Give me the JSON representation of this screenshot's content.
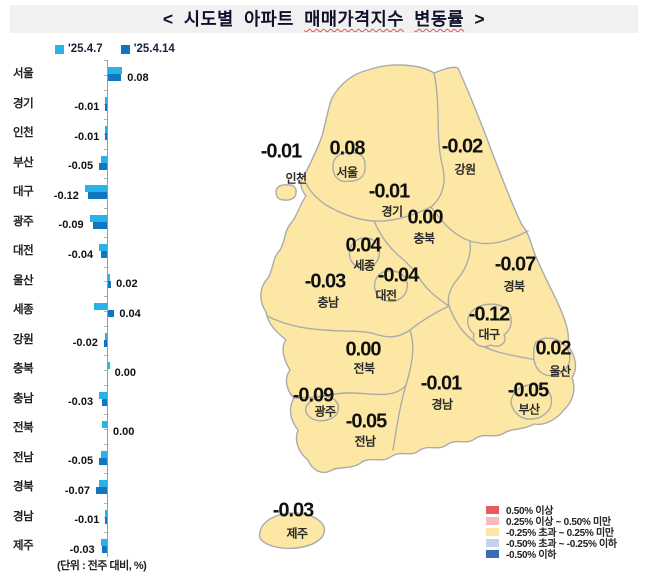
{
  "title": {
    "part1": "< 시도별 아파트 ",
    "word1": "매매가격지수",
    "sep": " ",
    "word2": "변동률",
    "part2": " >"
  },
  "chart_data": {
    "type": "bar",
    "orientation": "horizontal",
    "unit_note": "(단위 : 전주 대비, %)",
    "categories": [
      "서울",
      "경기",
      "인천",
      "부산",
      "대구",
      "광주",
      "대전",
      "울산",
      "세종",
      "강원",
      "충북",
      "충남",
      "전북",
      "전남",
      "경북",
      "경남",
      "제주"
    ],
    "series": [
      {
        "name": "'25.4.7",
        "color": "#29b2e8",
        "values": [
          0.09,
          -0.01,
          -0.01,
          -0.04,
          -0.14,
          -0.11,
          -0.05,
          0.01,
          -0.08,
          -0.01,
          0.01,
          -0.05,
          -0.03,
          -0.04,
          -0.05,
          -0.01,
          -0.04
        ]
      },
      {
        "name": "'25.4.14",
        "color": "#0f76bf",
        "values": [
          0.08,
          -0.01,
          -0.01,
          -0.05,
          -0.12,
          -0.09,
          -0.04,
          0.02,
          0.04,
          -0.02,
          0.0,
          -0.03,
          0.0,
          -0.05,
          -0.07,
          -0.01,
          -0.03
        ]
      }
    ],
    "value_labels": [
      "0.08",
      "-0.01",
      "-0.01",
      "-0.05",
      "-0.12",
      "-0.09",
      "-0.04",
      "0.02",
      "0.04",
      "-0.02",
      "0.00",
      "-0.03",
      "0.00",
      "-0.05",
      "-0.07",
      "-0.01",
      "-0.03"
    ],
    "xlim": [
      -0.15,
      0.12
    ]
  },
  "map": {
    "fill": "#fce8a4",
    "border": "#ababab",
    "regions": [
      {
        "name": "서울",
        "value": "0.08",
        "vx": 347,
        "vy": 149,
        "nx": 347,
        "ny": 172
      },
      {
        "name": "인천",
        "value": "-0.01",
        "vx": 281,
        "vy": 152,
        "nx": 296,
        "ny": 178
      },
      {
        "name": "경기",
        "value": "-0.01",
        "vx": 389,
        "vy": 192,
        "nx": 392,
        "ny": 211
      },
      {
        "name": "강원",
        "value": "-0.02",
        "vx": 462,
        "vy": 147,
        "nx": 465,
        "ny": 169
      },
      {
        "name": "충북",
        "value": "0.00",
        "vx": 425,
        "vy": 218,
        "nx": 424,
        "ny": 238
      },
      {
        "name": "세종",
        "value": "0.04",
        "vx": 363,
        "vy": 246,
        "nx": 364,
        "ny": 265
      },
      {
        "name": "충남",
        "value": "-0.03",
        "vx": 325,
        "vy": 282,
        "nx": 328,
        "ny": 302
      },
      {
        "name": "대전",
        "value": "-0.04",
        "vx": 398,
        "vy": 276,
        "nx": 386,
        "ny": 295
      },
      {
        "name": "경북",
        "value": "-0.07",
        "vx": 515,
        "vy": 265,
        "nx": 514,
        "ny": 286
      },
      {
        "name": "대구",
        "value": "-0.12",
        "vx": 489,
        "vy": 315,
        "nx": 489,
        "ny": 334
      },
      {
        "name": "전북",
        "value": "0.00",
        "vx": 363,
        "vy": 350,
        "nx": 364,
        "ny": 368
      },
      {
        "name": "울산",
        "value": "0.02",
        "vx": 553,
        "vy": 349,
        "nx": 560,
        "ny": 371
      },
      {
        "name": "경남",
        "value": "-0.01",
        "vx": 441,
        "vy": 384,
        "nx": 442,
        "ny": 404
      },
      {
        "name": "부산",
        "value": "-0.05",
        "vx": 528,
        "vy": 391,
        "nx": 529,
        "ny": 409
      },
      {
        "name": "광주",
        "value": "-0.09",
        "vx": 313,
        "vy": 396,
        "nx": 325,
        "ny": 411
      },
      {
        "name": "전남",
        "value": "-0.05",
        "vx": 366,
        "vy": 422,
        "nx": 365,
        "ny": 441
      },
      {
        "name": "제주",
        "value": "-0.03",
        "vx": 293,
        "vy": 511,
        "nx": 297,
        "ny": 533
      }
    ],
    "legend": [
      {
        "color": "#e85a5e",
        "label": "0.50% 이상"
      },
      {
        "color": "#f7babe",
        "label": "0.25% 이상 ~ 0.50% 미만"
      },
      {
        "color": "#fce8a4",
        "label": "-0.25% 초과 ~ 0.25% 미만"
      },
      {
        "color": "#c4d4eb",
        "label": "-0.50% 초과 ~ -0.25% 이하"
      },
      {
        "color": "#3a6cb5",
        "label": "-0.50% 이하"
      }
    ]
  }
}
